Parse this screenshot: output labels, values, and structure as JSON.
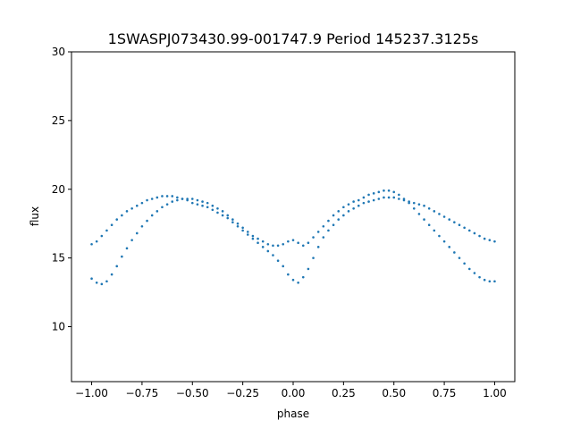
{
  "chart_data": {
    "type": "scatter",
    "title": "1SWASPJ073430.99-001747.9 Period 145237.3125s",
    "xlabel": "phase",
    "ylabel": "flux",
    "xlim": [
      -1.1,
      1.1
    ],
    "ylim": [
      6.0,
      30.0
    ],
    "xticks": [
      -1.0,
      -0.75,
      -0.5,
      -0.25,
      0.0,
      0.25,
      0.5,
      0.75,
      1.0
    ],
    "xtick_labels": [
      "−1.00",
      "−0.75",
      "−0.50",
      "−0.25",
      "0.00",
      "0.25",
      "0.50",
      "0.75",
      "1.00"
    ],
    "yticks": [
      10,
      15,
      20,
      25,
      30
    ],
    "ytick_labels": [
      "10",
      "15",
      "20",
      "25",
      "30"
    ],
    "grid": false,
    "point_color": "#1f77b4",
    "series": [
      {
        "x": [
          -1.0,
          -0.975,
          -0.95,
          -0.925,
          -0.9,
          -0.875,
          -0.85,
          -0.825,
          -0.8,
          -0.775,
          -0.75,
          -0.725,
          -0.7,
          -0.675,
          -0.65,
          -0.625,
          -0.6,
          -0.575,
          -0.55,
          -0.525,
          -0.5,
          -0.475,
          -0.45,
          -0.425,
          -0.4,
          -0.375,
          -0.35,
          -0.325,
          -0.3,
          -0.275,
          -0.25,
          -0.225,
          -0.2,
          -0.175,
          -0.15,
          -0.125,
          -0.1,
          -0.075,
          -0.05,
          -0.025,
          0.0,
          0.025,
          0.05,
          0.075,
          0.1,
          0.125,
          0.15,
          0.175,
          0.2,
          0.225,
          0.25,
          0.275,
          0.3,
          0.325,
          0.35,
          0.375,
          0.4,
          0.425,
          0.45,
          0.475,
          0.5,
          0.525,
          0.55,
          0.575,
          0.6,
          0.625,
          0.65,
          0.675,
          0.7,
          0.725,
          0.75,
          0.775,
          0.8,
          0.825,
          0.85,
          0.875,
          0.9,
          0.925,
          0.95,
          0.975,
          1.0
        ],
        "y": [
          16.0,
          16.2,
          16.6,
          17.0,
          17.4,
          17.8,
          18.1,
          18.4,
          18.6,
          18.8,
          19.0,
          19.2,
          19.3,
          19.4,
          19.5,
          19.5,
          19.5,
          19.4,
          19.3,
          19.2,
          19.0,
          18.9,
          18.8,
          18.7,
          18.5,
          18.3,
          18.1,
          17.9,
          17.6,
          17.3,
          17.0,
          16.7,
          16.4,
          16.1,
          15.8,
          15.5,
          15.2,
          14.8,
          14.4,
          13.8,
          13.4,
          13.2,
          13.6,
          14.2,
          15.0,
          15.8,
          16.5,
          17.0,
          17.4,
          17.8,
          18.1,
          18.4,
          18.6,
          18.8,
          19.0,
          19.1,
          19.2,
          19.3,
          19.4,
          19.4,
          19.4,
          19.3,
          19.2,
          19.1,
          19.0,
          18.9,
          18.8,
          18.6,
          18.4,
          18.2,
          18.0,
          17.8,
          17.6,
          17.4,
          17.2,
          17.0,
          16.8,
          16.6,
          16.4,
          16.3,
          16.2
        ]
      },
      {
        "x": [
          -1.0,
          -0.975,
          -0.95,
          -0.925,
          -0.9,
          -0.875,
          -0.85,
          -0.825,
          -0.8,
          -0.775,
          -0.75,
          -0.725,
          -0.7,
          -0.675,
          -0.65,
          -0.625,
          -0.6,
          -0.575,
          -0.55,
          -0.525,
          -0.5,
          -0.475,
          -0.45,
          -0.425,
          -0.4,
          -0.375,
          -0.35,
          -0.325,
          -0.3,
          -0.275,
          -0.25,
          -0.225,
          -0.2,
          -0.175,
          -0.15,
          -0.125,
          -0.1,
          -0.075,
          -0.05,
          -0.025,
          0.0,
          0.025,
          0.05,
          0.075,
          0.1,
          0.125,
          0.15,
          0.175,
          0.2,
          0.225,
          0.25,
          0.275,
          0.3,
          0.325,
          0.35,
          0.375,
          0.4,
          0.425,
          0.45,
          0.475,
          0.5,
          0.525,
          0.55,
          0.575,
          0.6,
          0.625,
          0.65,
          0.675,
          0.7,
          0.725,
          0.75,
          0.775,
          0.8,
          0.825,
          0.85,
          0.875,
          0.9,
          0.925,
          0.95,
          0.975,
          1.0
        ],
        "y": [
          13.5,
          13.2,
          13.1,
          13.3,
          13.8,
          14.4,
          15.1,
          15.7,
          16.3,
          16.8,
          17.3,
          17.7,
          18.1,
          18.4,
          18.7,
          18.9,
          19.1,
          19.2,
          19.3,
          19.3,
          19.3,
          19.2,
          19.1,
          19.0,
          18.8,
          18.6,
          18.4,
          18.1,
          17.8,
          17.5,
          17.2,
          16.9,
          16.6,
          16.4,
          16.2,
          16.0,
          15.9,
          15.9,
          16.0,
          16.2,
          16.3,
          16.1,
          15.9,
          16.1,
          16.5,
          16.9,
          17.3,
          17.7,
          18.1,
          18.4,
          18.7,
          18.9,
          19.1,
          19.2,
          19.4,
          19.6,
          19.7,
          19.8,
          19.9,
          19.9,
          19.8,
          19.6,
          19.3,
          19.0,
          18.6,
          18.2,
          17.8,
          17.4,
          17.0,
          16.6,
          16.2,
          15.8,
          15.4,
          15.0,
          14.6,
          14.2,
          13.9,
          13.6,
          13.4,
          13.3,
          13.3
        ]
      }
    ]
  }
}
